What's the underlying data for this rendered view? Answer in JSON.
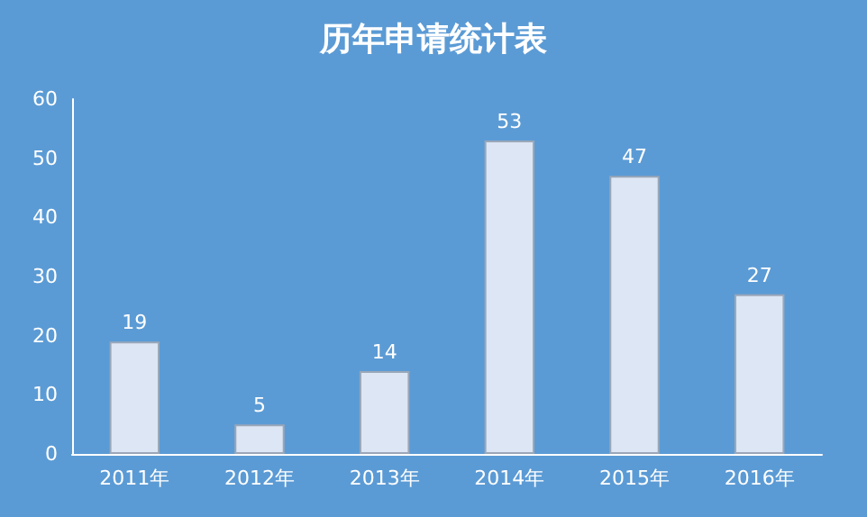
{
  "chart_data": {
    "type": "bar",
    "title": "历年申请统计表",
    "categories": [
      "2011年",
      "2012年",
      "2013年",
      "2014年",
      "2015年",
      "2016年"
    ],
    "values": [
      19,
      5,
      14,
      53,
      47,
      27
    ],
    "color": "#dce6f4",
    "ylim": [
      0,
      60
    ],
    "yticks": [
      0,
      10,
      20,
      30,
      40,
      50,
      60
    ],
    "data_labels": true
  }
}
